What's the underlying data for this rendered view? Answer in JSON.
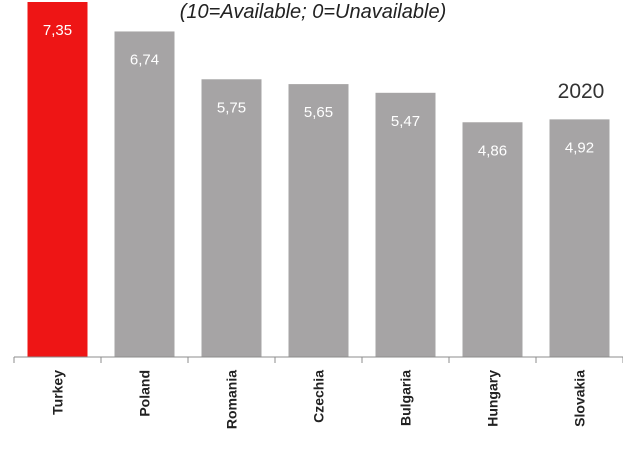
{
  "chart_data": {
    "type": "bar",
    "subtitle": "(10=Available; 0=Unavailable)",
    "annotation": "2020",
    "categories": [
      "Turkey",
      "Poland",
      "Romania",
      "Czechia",
      "Bulgaria",
      "Hungary",
      "Slovakia"
    ],
    "values": [
      7.35,
      6.74,
      5.75,
      5.65,
      5.47,
      4.86,
      4.92
    ],
    "value_labels": [
      "7,35",
      "6,74",
      "5,75",
      "5,65",
      "5,47",
      "4,86",
      "4,92"
    ],
    "highlight_index": 0,
    "colors": {
      "highlight": "#ee1515",
      "default": "#a6a4a5",
      "axis": "#8c8c8c"
    },
    "ylim": [
      0,
      7.35
    ],
    "grid": false
  }
}
